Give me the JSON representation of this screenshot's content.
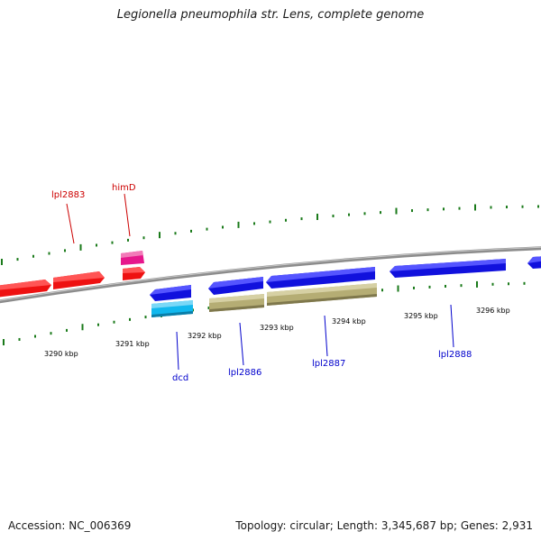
{
  "title": "Legionella pneumophila str. Lens, complete genome",
  "footer": {
    "accession": "Accession: NC_006369",
    "summary": "Topology: circular; Length: 3,345,687 bp; Genes: 2,931"
  },
  "colors": {
    "backbone": "#8c8c8c",
    "tick": "#1a7a1a",
    "forward_label": "#cc0000",
    "reverse_label": "#0000cc",
    "red_gene": "#ee1111",
    "pink_gene": "#e6178c",
    "blue_gene": "#1111dd",
    "cyan_gene": "#11b8ee",
    "olive_gene": "#b5ad74"
  },
  "scale_labels": [
    "3290 kbp",
    "3291 kbp",
    "3292 kbp",
    "3293 kbp",
    "3294 kbp",
    "3295 kbp",
    "3296 kbp"
  ],
  "gene_labels": {
    "lpl2883": "lpl2883",
    "himD": "himD",
    "dcd": "dcd",
    "lpl2886": "lpl2886",
    "lpl2887": "lpl2887",
    "lpl2888": "lpl2888"
  }
}
